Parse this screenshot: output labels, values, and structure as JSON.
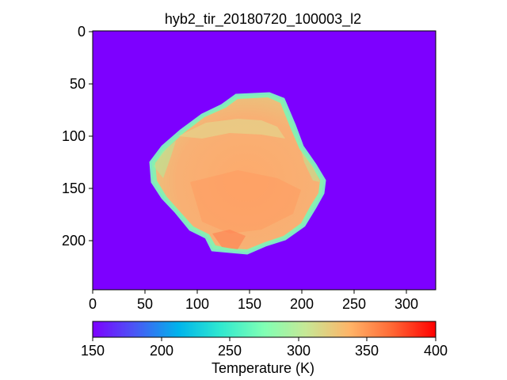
{
  "title": "hyb2_tir_20180720_100003_l2",
  "image": {
    "x_ticks": [
      "0",
      "50",
      "100",
      "150",
      "200",
      "250",
      "300"
    ],
    "y_ticks": [
      "0",
      "50",
      "100",
      "150",
      "200"
    ],
    "background_color": "#7d00ff"
  },
  "colorbar": {
    "label": "Temperature (K)",
    "ticks": [
      "150",
      "200",
      "250",
      "300",
      "350",
      "400"
    ],
    "range": [
      150,
      400
    ],
    "colormap": "rainbow"
  }
}
